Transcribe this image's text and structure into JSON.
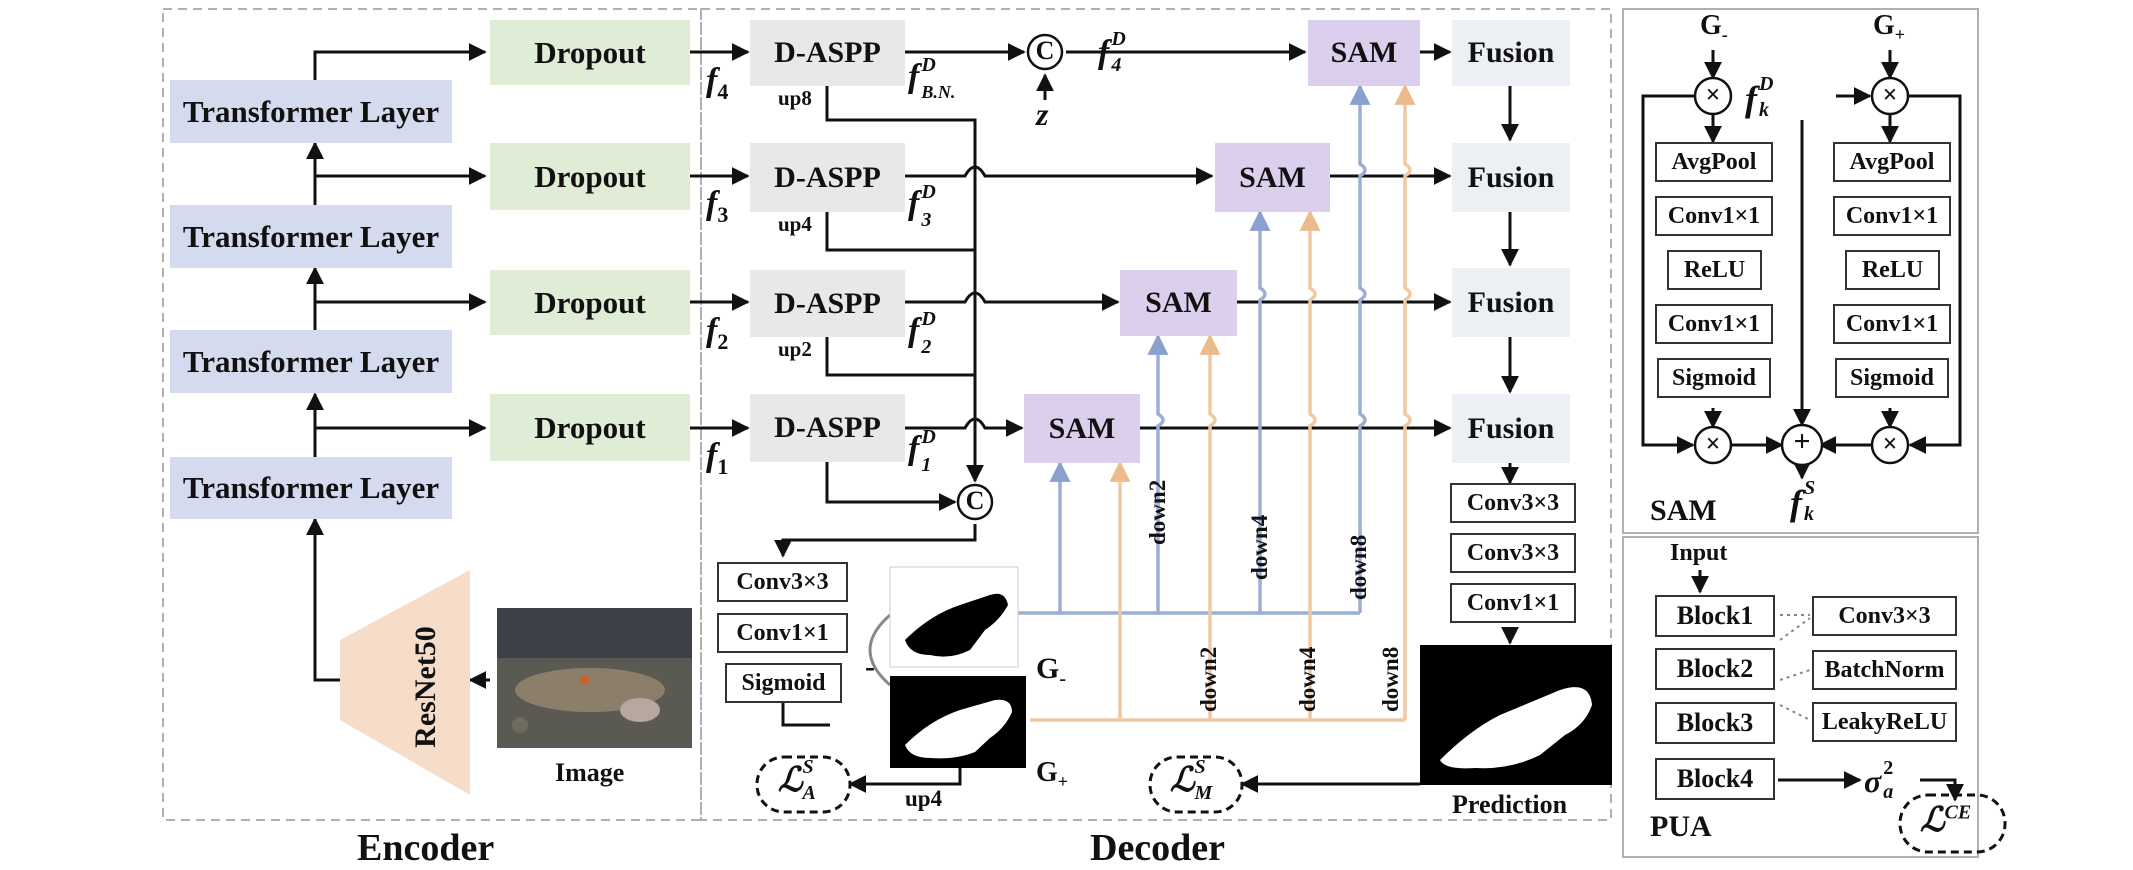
{
  "encoder": {
    "transformer_label": "Transformer Layer",
    "dropout_label": "Dropout",
    "backbone_label": "ResNet50",
    "image_caption": "Image",
    "section_title": "Encoder",
    "features": [
      "f",
      "f",
      "f",
      "f"
    ],
    "feature_subscripts": [
      "4",
      "3",
      "2",
      "1"
    ]
  },
  "decoder": {
    "daspp_label": "D-ASPP",
    "sam_label": "SAM",
    "fusion_label": "Fusion",
    "up_labels": [
      "up8",
      "up4",
      "up2"
    ],
    "fD_main": "f",
    "fD_sup": "D",
    "fD_subs": [
      "B.N.",
      "3",
      "2",
      "1"
    ],
    "f4D_sub": "4",
    "concat_symbol": "C",
    "z_label": "z",
    "down_labels": [
      "down2",
      "down4",
      "down8"
    ],
    "branch_blocks": [
      "Conv3×3",
      "Conv1×1",
      "Sigmoid"
    ],
    "head_blocks": [
      "Conv3×3",
      "Conv3×3",
      "Conv1×1"
    ],
    "minus_sign": "-",
    "g_minus": "G",
    "g_minus_sub": "-",
    "g_plus": "G",
    "g_plus_sub": "+",
    "loss_a": "ℒ",
    "loss_a_sup": "S",
    "loss_a_sub": "A",
    "loss_m": "ℒ",
    "loss_m_sup": "S",
    "loss_m_sub": "M",
    "up4_label": "up4",
    "prediction_caption": "Prediction",
    "section_title": "Decoder"
  },
  "sam_detail": {
    "inputs": [
      "G",
      "G"
    ],
    "input_subs": [
      "-",
      "+"
    ],
    "ops": [
      "AvgPool",
      "Conv1×1",
      "ReLU",
      "Conv1×1",
      "Sigmoid"
    ],
    "times": "×",
    "plus": "+",
    "fkD_main": "f",
    "fkD_sup": "D",
    "fkD_sub": "k",
    "fkS_main": "f",
    "fkS_sup": "S",
    "fkS_sub": "k",
    "title": "SAM"
  },
  "pua": {
    "input_label": "Input",
    "blocks": [
      "Block1",
      "Block2",
      "Block3",
      "Block4"
    ],
    "components": [
      "Conv3×3",
      "BatchNorm",
      "LeakyReLU"
    ],
    "sigma_main": "σ",
    "sigma_sup": "2",
    "sigma_sub": "a",
    "loss_ce": "ℒ",
    "loss_ce_sup": "CE",
    "title": "PUA"
  },
  "colors": {
    "transformer": "#d5dbee",
    "dropout": "#dfecd6",
    "daspp": "#e8e8e8",
    "sam": "#dccfee",
    "fusion": "#eceff3",
    "blue_line": "#9aaed6",
    "peach_line": "#f0c9a3",
    "backbone": "#f5ddc9"
  }
}
